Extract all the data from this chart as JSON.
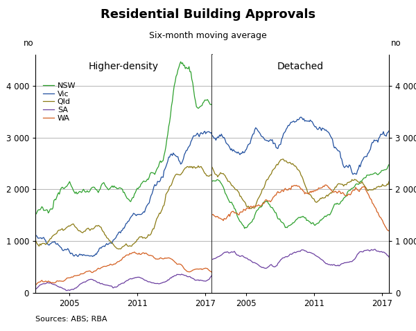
{
  "title": "Residential Building Approvals",
  "subtitle": "Six-month moving average",
  "source": "Sources: ABS; RBA",
  "left_label": "Higher-density",
  "right_label": "Detached",
  "ylabel_left": "no",
  "ylabel_right": "no",
  "ylim": [
    0,
    4600
  ],
  "yticks": [
    0,
    1000,
    2000,
    3000,
    4000
  ],
  "ytick_labels": [
    "0",
    "1 000",
    "2 000",
    "3 000",
    "4 000"
  ],
  "colors": {
    "NSW": "#2ca02c",
    "Vic": "#1f4e9e",
    "Qld": "#8b7a14",
    "SA": "#6b3fa0",
    "WA": "#d45f20"
  },
  "legend_names": [
    "NSW",
    "Vic",
    "Qld",
    "SA",
    "WA"
  ],
  "background": "#ffffff",
  "grid_color": "#aaaaaa",
  "label_color": "#000000",
  "figsize": [
    6.0,
    4.78
  ],
  "dpi": 100
}
